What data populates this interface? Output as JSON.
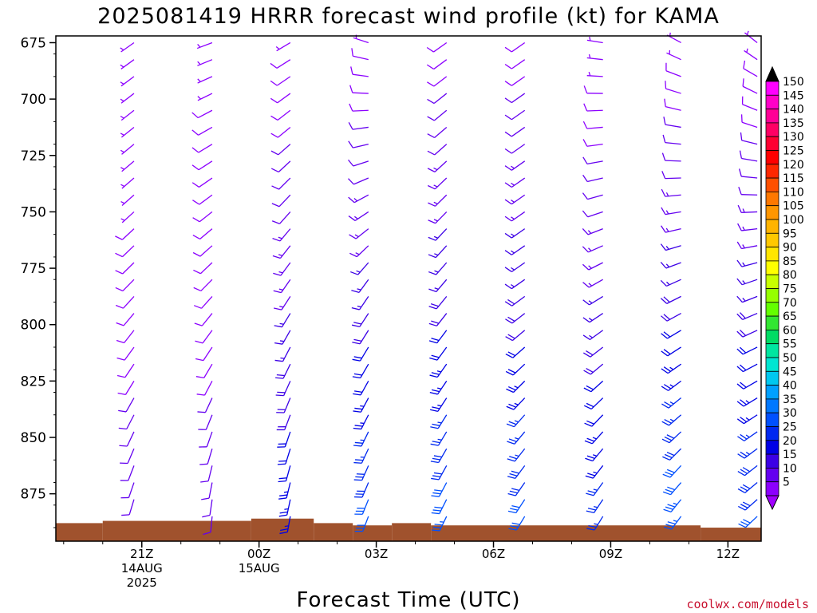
{
  "chart_data": {
    "type": "wind-barb-profile",
    "title": "2025081419 HRRR forecast wind profile (kt) for KAMA",
    "xlabel": "Forecast Time (UTC)",
    "ylabel": "",
    "y_axis": {
      "ticks": [
        "675",
        "700",
        "725",
        "750",
        "775",
        "800",
        "825",
        "850",
        "875"
      ],
      "range_hpa": [
        672,
        896
      ]
    },
    "x_axis": {
      "ticks": [
        {
          "hour": 2,
          "lines": [
            "21Z",
            "14AUG",
            "2025"
          ]
        },
        {
          "hour": 5,
          "lines": [
            "00Z",
            "15AUG"
          ]
        },
        {
          "hour": 8,
          "lines": [
            "03Z"
          ]
        },
        {
          "hour": 11,
          "lines": [
            "06Z"
          ]
        },
        {
          "hour": 14,
          "lines": [
            "09Z"
          ]
        },
        {
          "hour": 17,
          "lines": [
            "12Z"
          ]
        }
      ],
      "range_hours": [
        -0.2,
        17.85
      ]
    },
    "columns": [
      {
        "hour": 1.8,
        "base_hpa": 884,
        "low_dir": 195,
        "mid_dir": 225,
        "top_dir": 235,
        "low_spd": 12,
        "mid_spd": 8,
        "top_spd": 6
      },
      {
        "hour": 3.8,
        "base_hpa": 886,
        "low_dir": 185,
        "mid_dir": 225,
        "top_dir": 250,
        "low_spd": 11,
        "mid_spd": 9,
        "top_spd": 7
      },
      {
        "hour": 5.8,
        "base_hpa": 886,
        "low_dir": 190,
        "mid_dir": 215,
        "top_dir": 240,
        "low_spd": 24,
        "mid_spd": 14,
        "top_spd": 7
      },
      {
        "hour": 7.8,
        "base_hpa": 891,
        "low_dir": 200,
        "mid_dir": 215,
        "top_dir": 290,
        "low_spd": 32,
        "mid_spd": 16,
        "top_spd": 7
      },
      {
        "hour": 9.8,
        "base_hpa": 891,
        "low_dir": 205,
        "mid_dir": 220,
        "top_dir": 235,
        "low_spd": 34,
        "mid_spd": 17,
        "top_spd": 8
      },
      {
        "hour": 11.8,
        "base_hpa": 891,
        "low_dir": 210,
        "mid_dir": 235,
        "top_dir": 235,
        "low_spd": 32,
        "mid_spd": 17,
        "top_spd": 8
      },
      {
        "hour": 13.8,
        "base_hpa": 891,
        "low_dir": 210,
        "mid_dir": 240,
        "top_dir": 280,
        "low_spd": 28,
        "mid_spd": 15,
        "top_spd": 6
      },
      {
        "hour": 15.8,
        "base_hpa": 891,
        "low_dir": 215,
        "mid_dir": 245,
        "top_dir": 300,
        "low_spd": 36,
        "mid_spd": 17,
        "top_spd": 6
      },
      {
        "hour": 17.75,
        "base_hpa": 892,
        "low_dir": 225,
        "mid_dir": 250,
        "top_dir": 310,
        "low_spd": 32,
        "mid_spd": 16,
        "top_spd": 6
      }
    ],
    "terrain": [
      {
        "h0": -0.2,
        "h1": 1.0,
        "hpa": 888
      },
      {
        "h0": 1.0,
        "h1": 4.8,
        "hpa": 887
      },
      {
        "h0": 4.8,
        "h1": 6.4,
        "hpa": 886
      },
      {
        "h0": 6.4,
        "h1": 7.4,
        "hpa": 888
      },
      {
        "h0": 7.4,
        "h1": 8.4,
        "hpa": 889
      },
      {
        "h0": 8.4,
        "h1": 9.4,
        "hpa": 888
      },
      {
        "h0": 9.4,
        "h1": 16.3,
        "hpa": 889
      },
      {
        "h0": 16.3,
        "h1": 17.85,
        "hpa": 890
      }
    ],
    "terrain_color": "#a0522d",
    "colorbar": {
      "labels": [
        "150",
        "145",
        "140",
        "135",
        "130",
        "125",
        "120",
        "115",
        "110",
        "105",
        "100",
        "95",
        "90",
        "85",
        "80",
        "75",
        "70",
        "65",
        "60",
        "55",
        "50",
        "45",
        "40",
        "35",
        "30",
        "25",
        "20",
        "15",
        "10",
        "5"
      ],
      "colors": [
        "#ff00ff",
        "#ff00c8",
        "#ff0096",
        "#ff0064",
        "#ff0032",
        "#ff0000",
        "#ff2800",
        "#ff5000",
        "#ff7800",
        "#ff9600",
        "#ffb400",
        "#ffc800",
        "#ffe600",
        "#ffff00",
        "#c8ff00",
        "#96ff00",
        "#64ff00",
        "#32e632",
        "#00dc64",
        "#00e6a0",
        "#00e6d2",
        "#00c8f0",
        "#00a0ff",
        "#0078ff",
        "#0050ff",
        "#0028f0",
        "#0000e6",
        "#3c00e6",
        "#6400f0",
        "#8c00ff"
      ],
      "top_color": "#000000",
      "bottom_color": "#a000ff"
    }
  },
  "credit": "coolwx.com/models"
}
